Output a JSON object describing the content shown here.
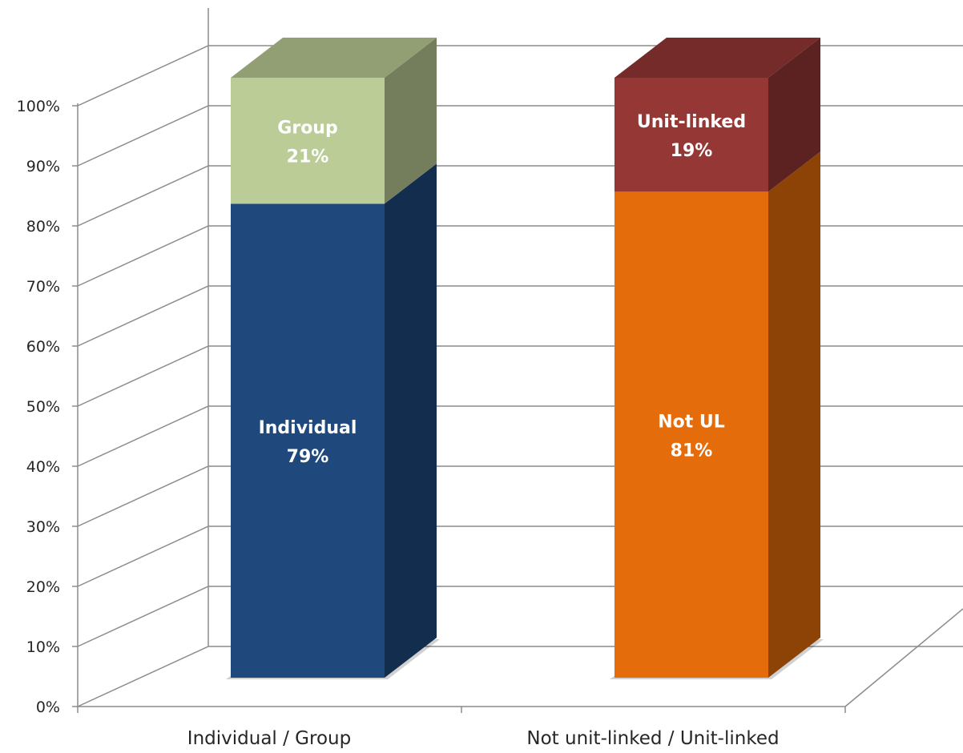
{
  "chart_data": {
    "type": "bar",
    "stacked": true,
    "three_d": true,
    "title": "",
    "xlabel": "",
    "ylabel": "",
    "ylim": [
      0,
      100
    ],
    "y_ticks": [
      "0%",
      "10%",
      "20%",
      "30%",
      "40%",
      "50%",
      "60%",
      "70%",
      "80%",
      "90%",
      "100%"
    ],
    "grid": true,
    "legend": "none",
    "categories": [
      "Individual / Group",
      "Not unit-linked / Unit-linked"
    ],
    "bars": [
      {
        "category": "Individual / Group",
        "segments": [
          {
            "name": "Individual",
            "value": 79,
            "label": "79%",
            "color": "#1F497D"
          },
          {
            "name": "Group",
            "value": 21,
            "label": "21%",
            "color": "#BBCC96"
          }
        ]
      },
      {
        "category": "Not unit-linked / Unit-linked",
        "segments": [
          {
            "name": "Not UL",
            "value": 81,
            "label": "81%",
            "color": "#E46C0A"
          },
          {
            "name": "Unit-linked",
            "value": 19,
            "label": "19%",
            "color": "#953735"
          }
        ]
      }
    ]
  }
}
